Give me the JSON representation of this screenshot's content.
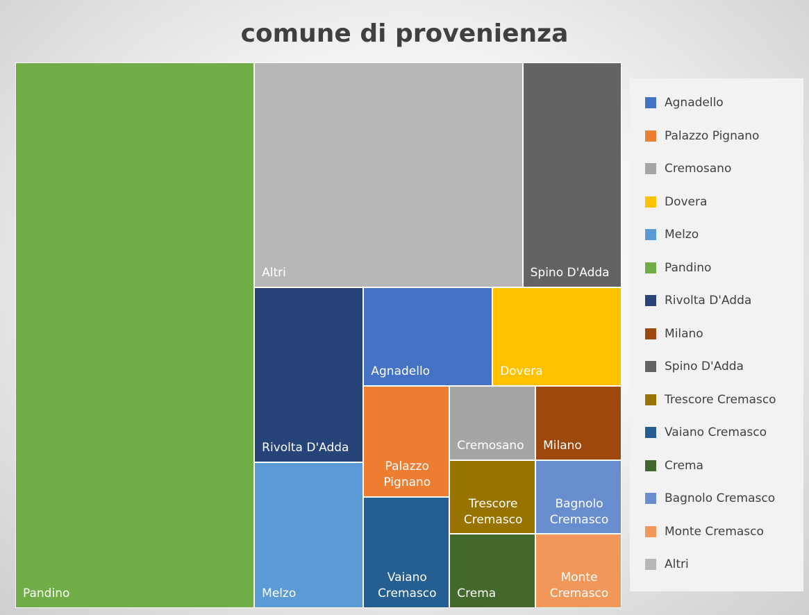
{
  "chart_data": {
    "type": "treemap",
    "title": "comune di provenienza",
    "categories": [
      "Agnadello",
      "Palazzo Pignano",
      "Cremosano",
      "Dovera",
      "Melzo",
      "Pandino",
      "Rivolta D'Adda",
      "Milano",
      "Spino D'Adda",
      "Trescore Cremasco",
      "Vaiano Cremasco",
      "Crema",
      "Bagnolo Cremasco",
      "Monte Cremasco",
      "Altri"
    ],
    "values": [
      4,
      3,
      2,
      4,
      5,
      41,
      6,
      2,
      7,
      2,
      3,
      2,
      2,
      2,
      19
    ],
    "colors": [
      "#4472C4",
      "#ED7D31",
      "#A5A5A5",
      "#FFC000",
      "#5B9BD5",
      "#70AD47",
      "#264478",
      "#9E480E",
      "#636363",
      "#997300",
      "#255E91",
      "#43682B",
      "#698ED0",
      "#F1975A",
      "#B7B7B7"
    ],
    "legend": "right"
  }
}
